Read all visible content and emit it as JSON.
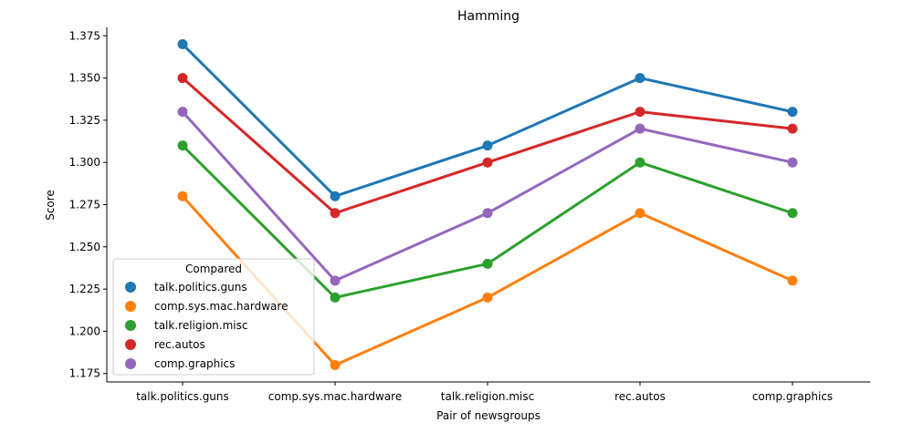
{
  "chart_data": {
    "type": "line",
    "title": "Hamming",
    "xlabel": "Pair of newsgroups",
    "ylabel": "Score",
    "categories": [
      "talk.politics.guns",
      "comp.sys.mac.hardware",
      "talk.religion.misc",
      "rec.autos",
      "comp.graphics"
    ],
    "ylim": [
      1.17,
      1.38
    ],
    "yticks": [
      "1.175",
      "1.200",
      "1.225",
      "1.250",
      "1.275",
      "1.300",
      "1.325",
      "1.350",
      "1.375"
    ],
    "grid": false,
    "legend": {
      "title": "Compared",
      "placement": "lower-left"
    },
    "series": [
      {
        "name": "talk.politics.guns",
        "color": "#1f77b4",
        "values": [
          1.37,
          1.28,
          1.31,
          1.35,
          1.33
        ]
      },
      {
        "name": "comp.sys.mac.hardware",
        "color": "#ff7f0e",
        "values": [
          1.28,
          1.18,
          1.22,
          1.27,
          1.23
        ]
      },
      {
        "name": "talk.religion.misc",
        "color": "#2ca02c",
        "values": [
          1.31,
          1.22,
          1.24,
          1.3,
          1.27
        ]
      },
      {
        "name": "rec.autos",
        "color": "#d62728",
        "values": [
          1.35,
          1.27,
          1.3,
          1.33,
          1.32
        ]
      },
      {
        "name": "comp.graphics",
        "color": "#9467bd",
        "values": [
          1.33,
          1.23,
          1.27,
          1.32,
          1.3
        ]
      }
    ]
  }
}
